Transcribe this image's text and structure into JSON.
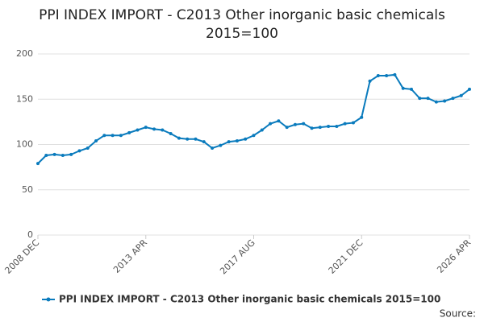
{
  "chart_data": {
    "type": "line",
    "title": [
      "PPI INDEX IMPORT - C2013 Other inorganic basic chemicals",
      "2015=100"
    ],
    "source": "Source:",
    "categories": [
      "2008 DEC",
      null,
      null,
      null,
      null,
      null,
      null,
      null,
      null,
      null,
      null,
      null,
      null,
      "2013 APR",
      null,
      null,
      null,
      null,
      null,
      null,
      null,
      null,
      null,
      null,
      null,
      null,
      "2017 AUG",
      null,
      null,
      null,
      null,
      null,
      null,
      null,
      null,
      null,
      null,
      null,
      null,
      "2021 DEC",
      null,
      null,
      null,
      null,
      null,
      null,
      null,
      null,
      null,
      null,
      null,
      null,
      "2026 APR"
    ],
    "series": [
      {
        "name": "PPI INDEX IMPORT - C2013 Other inorganic basic chemicals 2015=100",
        "color": "#0a7bbd",
        "values": [
          79,
          88,
          89,
          88,
          89,
          93,
          96,
          104,
          110,
          110,
          110,
          113,
          116,
          119,
          117,
          116,
          112,
          107,
          106,
          106,
          103,
          96,
          99,
          103,
          104,
          106,
          110,
          116,
          123,
          126,
          119,
          122,
          123,
          118,
          119,
          120,
          120,
          123,
          124,
          130,
          170,
          176,
          176,
          177,
          162,
          161,
          151,
          151,
          147,
          148,
          151,
          154,
          161
        ]
      }
    ],
    "ylim": [
      0,
      200
    ],
    "yticks": [
      0,
      50,
      100,
      150,
      200
    ],
    "grid": true
  }
}
